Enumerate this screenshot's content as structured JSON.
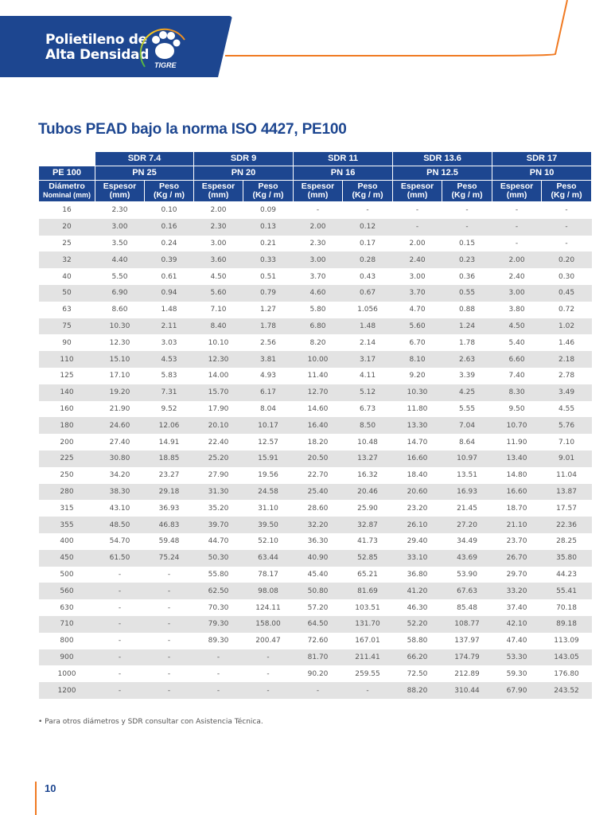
{
  "header": {
    "line1": "Polietileno de",
    "line2": "Alta Densidad",
    "logo_text": "TIGRE",
    "brand_color": "#1d4690",
    "accent_color": "#f07a22"
  },
  "title": "Tubos PEAD bajo la norma ISO 4427, PE100",
  "table": {
    "sdr": [
      "SDR 7.4",
      "SDR 9",
      "SDR 11",
      "SDR 13.6",
      "SDR 17"
    ],
    "pe_label": "PE 100",
    "pn": [
      "PN 25",
      "PN 20",
      "PN 16",
      "PN 12.5",
      "PN 10"
    ],
    "diam_label_1": "Diámetro",
    "diam_label_2": "Nominal (mm)",
    "esp_label_1": "Espesor",
    "esp_label_2": "(mm)",
    "peso_label_1": "Peso",
    "peso_label_2": "(Kg / m)",
    "rows": [
      [
        "16",
        "2.30",
        "0.10",
        "2.00",
        "0.09",
        "-",
        "-",
        "-",
        "-",
        "-",
        "-"
      ],
      [
        "20",
        "3.00",
        "0.16",
        "2.30",
        "0.13",
        "2.00",
        "0.12",
        "-",
        "-",
        "-",
        "-"
      ],
      [
        "25",
        "3.50",
        "0.24",
        "3.00",
        "0.21",
        "2.30",
        "0.17",
        "2.00",
        "0.15",
        "-",
        "-"
      ],
      [
        "32",
        "4.40",
        "0.39",
        "3.60",
        "0.33",
        "3.00",
        "0.28",
        "2.40",
        "0.23",
        "2.00",
        "0.20"
      ],
      [
        "40",
        "5.50",
        "0.61",
        "4.50",
        "0.51",
        "3.70",
        "0.43",
        "3.00",
        "0.36",
        "2.40",
        "0.30"
      ],
      [
        "50",
        "6.90",
        "0.94",
        "5.60",
        "0.79",
        "4.60",
        "0.67",
        "3.70",
        "0.55",
        "3.00",
        "0.45"
      ],
      [
        "63",
        "8.60",
        "1.48",
        "7.10",
        "1.27",
        "5.80",
        "1.056",
        "4.70",
        "0.88",
        "3.80",
        "0.72"
      ],
      [
        "75",
        "10.30",
        "2.11",
        "8.40",
        "1.78",
        "6.80",
        "1.48",
        "5.60",
        "1.24",
        "4.50",
        "1.02"
      ],
      [
        "90",
        "12.30",
        "3.03",
        "10.10",
        "2.56",
        "8.20",
        "2.14",
        "6.70",
        "1.78",
        "5.40",
        "1.46"
      ],
      [
        "110",
        "15.10",
        "4.53",
        "12.30",
        "3.81",
        "10.00",
        "3.17",
        "8.10",
        "2.63",
        "6.60",
        "2.18"
      ],
      [
        "125",
        "17.10",
        "5.83",
        "14.00",
        "4.93",
        "11.40",
        "4.11",
        "9.20",
        "3.39",
        "7.40",
        "2.78"
      ],
      [
        "140",
        "19.20",
        "7.31",
        "15.70",
        "6.17",
        "12.70",
        "5.12",
        "10.30",
        "4.25",
        "8.30",
        "3.49"
      ],
      [
        "160",
        "21.90",
        "9.52",
        "17.90",
        "8.04",
        "14.60",
        "6.73",
        "11.80",
        "5.55",
        "9.50",
        "4.55"
      ],
      [
        "180",
        "24.60",
        "12.06",
        "20.10",
        "10.17",
        "16.40",
        "8.50",
        "13.30",
        "7.04",
        "10.70",
        "5.76"
      ],
      [
        "200",
        "27.40",
        "14.91",
        "22.40",
        "12.57",
        "18.20",
        "10.48",
        "14.70",
        "8.64",
        "11.90",
        "7.10"
      ],
      [
        "225",
        "30.80",
        "18.85",
        "25.20",
        "15.91",
        "20.50",
        "13.27",
        "16.60",
        "10.97",
        "13.40",
        "9.01"
      ],
      [
        "250",
        "34.20",
        "23.27",
        "27.90",
        "19.56",
        "22.70",
        "16.32",
        "18.40",
        "13.51",
        "14.80",
        "11.04"
      ],
      [
        "280",
        "38.30",
        "29.18",
        "31.30",
        "24.58",
        "25.40",
        "20.46",
        "20.60",
        "16.93",
        "16.60",
        "13.87"
      ],
      [
        "315",
        "43.10",
        "36.93",
        "35.20",
        "31.10",
        "28.60",
        "25.90",
        "23.20",
        "21.45",
        "18.70",
        "17.57"
      ],
      [
        "355",
        "48.50",
        "46.83",
        "39.70",
        "39.50",
        "32.20",
        "32.87",
        "26.10",
        "27.20",
        "21.10",
        "22.36"
      ],
      [
        "400",
        "54.70",
        "59.48",
        "44.70",
        "52.10",
        "36.30",
        "41.73",
        "29.40",
        "34.49",
        "23.70",
        "28.25"
      ],
      [
        "450",
        "61.50",
        "75.24",
        "50.30",
        "63.44",
        "40.90",
        "52.85",
        "33.10",
        "43.69",
        "26.70",
        "35.80"
      ],
      [
        "500",
        "-",
        "-",
        "55.80",
        "78.17",
        "45.40",
        "65.21",
        "36.80",
        "53.90",
        "29.70",
        "44.23"
      ],
      [
        "560",
        "-",
        "-",
        "62.50",
        "98.08",
        "50.80",
        "81.69",
        "41.20",
        "67.63",
        "33.20",
        "55.41"
      ],
      [
        "630",
        "-",
        "-",
        "70.30",
        "124.11",
        "57.20",
        "103.51",
        "46.30",
        "85.48",
        "37.40",
        "70.18"
      ],
      [
        "710",
        "-",
        "-",
        "79.30",
        "158.00",
        "64.50",
        "131.70",
        "52.20",
        "108.77",
        "42.10",
        "89.18"
      ],
      [
        "800",
        "-",
        "-",
        "89.30",
        "200.47",
        "72.60",
        "167.01",
        "58.80",
        "137.97",
        "47.40",
        "113.09"
      ],
      [
        "900",
        "-",
        "-",
        "-",
        "-",
        "81.70",
        "211.41",
        "66.20",
        "174.79",
        "53.30",
        "143.05"
      ],
      [
        "1000",
        "-",
        "-",
        "-",
        "-",
        "90.20",
        "259.55",
        "72.50",
        "212.89",
        "59.30",
        "176.80"
      ],
      [
        "1200",
        "-",
        "-",
        "-",
        "-",
        "-",
        "-",
        "88.20",
        "310.44",
        "67.90",
        "243.52"
      ]
    ]
  },
  "footnote": "• Para otros diámetros y SDR consultar con Asistencia Técnica.",
  "page_number": "10"
}
